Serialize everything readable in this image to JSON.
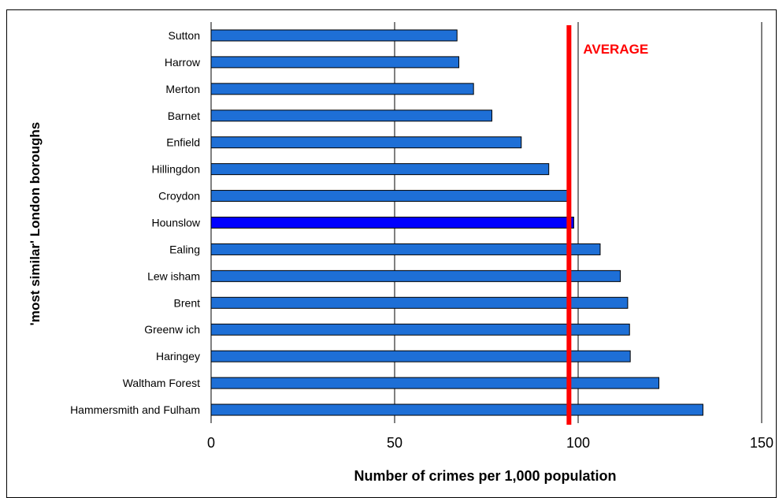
{
  "chart_data": {
    "type": "bar",
    "orientation": "horizontal",
    "title": "",
    "xlabel": "Number of crimes per 1,000 population",
    "ylabel": "'most similar' London boroughs",
    "xlim": [
      0,
      150
    ],
    "xticks": [
      0,
      50,
      100,
      150
    ],
    "categories": [
      "Sutton",
      "Harrow",
      "Merton",
      "Barnet",
      "Enfield",
      "Hillingdon",
      "Croydon",
      "Hounslow",
      "Ealing",
      "Lew isham",
      "Brent",
      "Greenw ich",
      "Haringey",
      "Waltham Forest",
      "Hammersmith and Fulham"
    ],
    "values": [
      67,
      67.5,
      71.5,
      76.5,
      84.5,
      92,
      97,
      98.8,
      106,
      111.5,
      113.5,
      114,
      114.2,
      122,
      134
    ],
    "highlight": "Hounslow",
    "bar_color": "#1e6fd6",
    "highlight_color": "#0000ff",
    "average": {
      "label": "AVERAGE",
      "value": 97.5,
      "color": "#ff0000"
    },
    "grid": "vertical",
    "legend": "none"
  }
}
